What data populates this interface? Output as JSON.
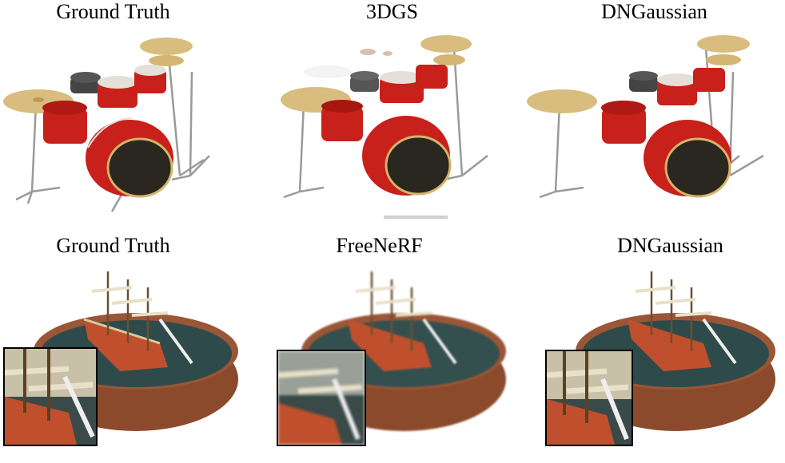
{
  "rows": [
    {
      "labels": [
        "Ground Truth",
        "3DGS",
        "DNGaussian"
      ],
      "scene": "drums"
    },
    {
      "labels": [
        "Ground Truth",
        "FreeNeRF",
        "DNGaussian"
      ],
      "scene": "ship"
    }
  ],
  "colors": {
    "drum_red": "#c8201a",
    "drum_dark": "#7a0f0c",
    "cymbal": "#d9bd7e",
    "hardware": "#9a9a9a",
    "ship_hull": "#c0502d",
    "water": "#2f4a4a",
    "bowl": "#8c4a2c"
  }
}
